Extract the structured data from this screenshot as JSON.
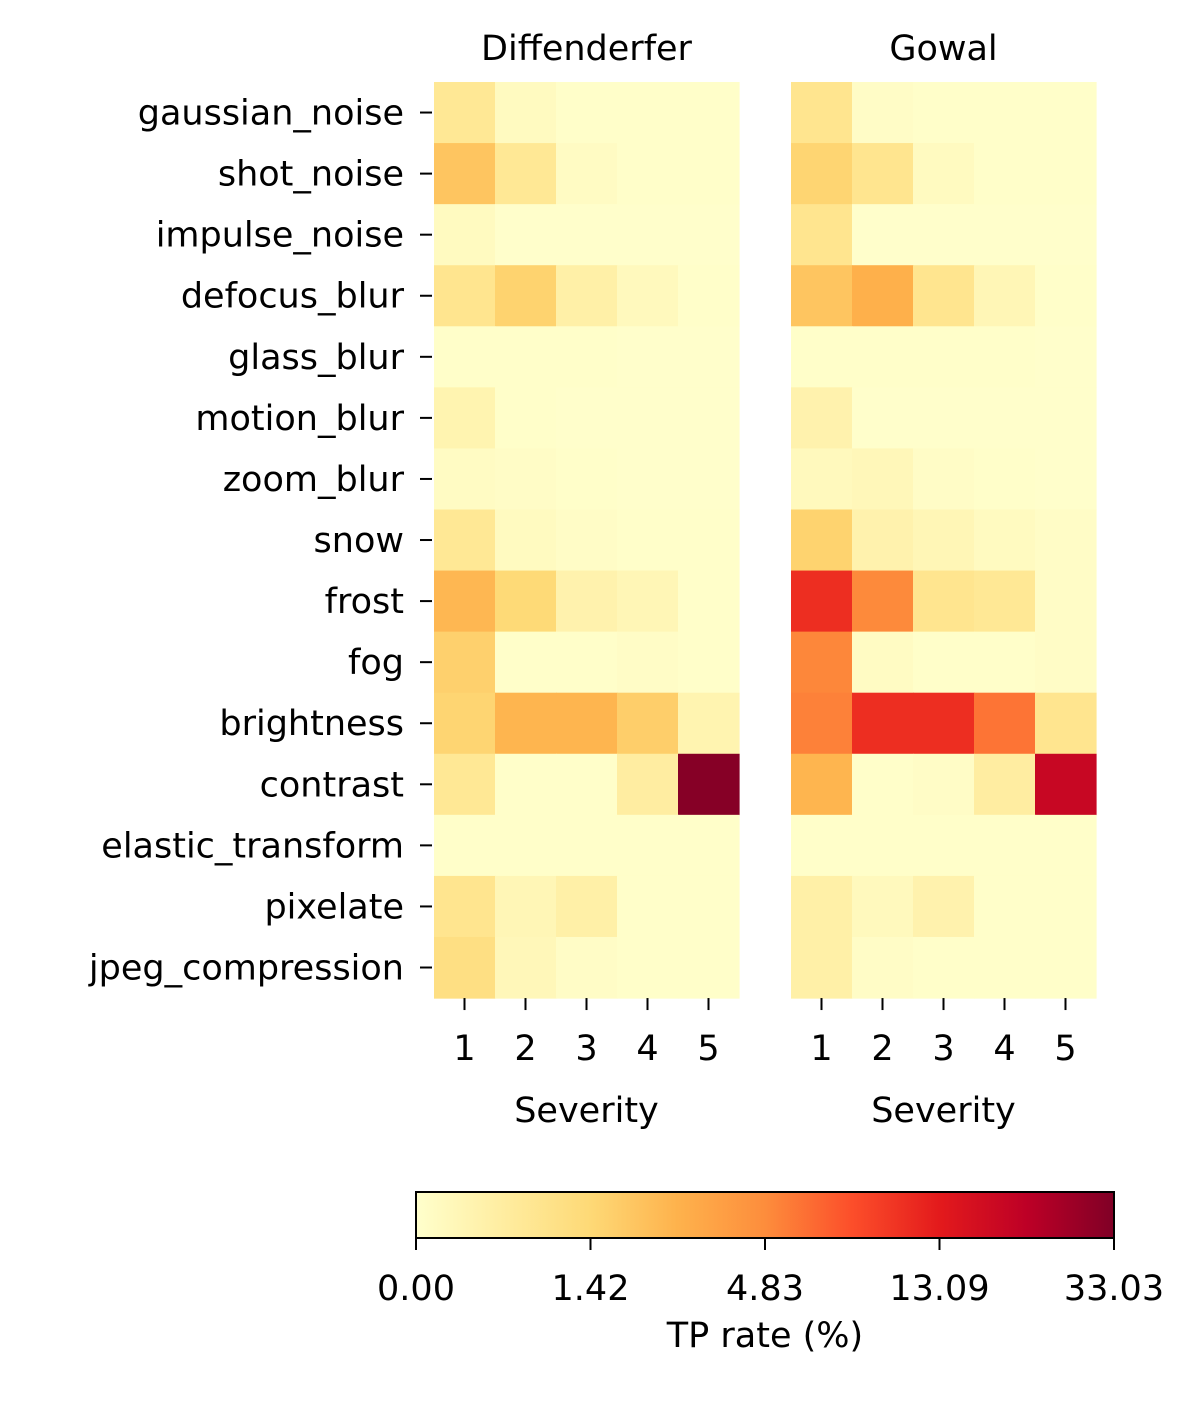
{
  "chart_data": {
    "type": "heatmap",
    "ylabels": [
      "gaussian_noise",
      "shot_noise",
      "impulse_noise",
      "defocus_blur",
      "glass_blur",
      "motion_blur",
      "zoom_blur",
      "snow",
      "frost",
      "fog",
      "brightness",
      "contrast",
      "elastic_transform",
      "pixelate",
      "jpeg_compression"
    ],
    "x": [
      1,
      2,
      3,
      4,
      5
    ],
    "xticklabels": [
      "1",
      "2",
      "3",
      "4",
      "5"
    ],
    "xlabel": "Severity",
    "panels": [
      {
        "title": "Diffenderfer",
        "values": [
          [
            0.9,
            0.2,
            0.05,
            0.05,
            0.05
          ],
          [
            2.3,
            0.9,
            0.15,
            0.05,
            0.05
          ],
          [
            0.2,
            0.02,
            0.02,
            0.02,
            0.02
          ],
          [
            1.0,
            1.7,
            0.6,
            0.25,
            0.05
          ],
          [
            0.05,
            0.05,
            0.05,
            0.02,
            0.02
          ],
          [
            0.45,
            0.05,
            0.02,
            0.02,
            0.02
          ],
          [
            0.15,
            0.1,
            0.05,
            0.02,
            0.02
          ],
          [
            0.9,
            0.2,
            0.1,
            0.05,
            0.05
          ],
          [
            2.9,
            1.4,
            0.5,
            0.35,
            0.05
          ],
          [
            1.8,
            0.05,
            0.05,
            0.1,
            0.05
          ],
          [
            1.6,
            3.0,
            3.0,
            1.9,
            0.45
          ],
          [
            0.9,
            0.05,
            0.05,
            0.7,
            32.0
          ],
          [
            0.05,
            0.05,
            0.05,
            0.05,
            0.05
          ],
          [
            1.0,
            0.35,
            0.6,
            0.05,
            0.05
          ],
          [
            1.2,
            0.3,
            0.1,
            0.05,
            0.05
          ]
        ]
      },
      {
        "title": "Gowal",
        "values": [
          [
            1.0,
            0.1,
            0.05,
            0.05,
            0.05
          ],
          [
            1.6,
            1.0,
            0.2,
            0.05,
            0.05
          ],
          [
            1.0,
            0.02,
            0.02,
            0.02,
            0.02
          ],
          [
            2.3,
            3.2,
            1.0,
            0.35,
            0.05
          ],
          [
            0.05,
            0.05,
            0.05,
            0.05,
            0.02
          ],
          [
            0.5,
            0.02,
            0.02,
            0.02,
            0.02
          ],
          [
            0.25,
            0.3,
            0.1,
            0.05,
            0.02
          ],
          [
            1.7,
            0.5,
            0.35,
            0.2,
            0.1
          ],
          [
            11.5,
            5.0,
            1.0,
            0.9,
            0.1
          ],
          [
            5.2,
            0.15,
            0.05,
            0.05,
            0.1
          ],
          [
            5.6,
            11.5,
            11.5,
            6.5,
            1.0
          ],
          [
            3.0,
            0.05,
            0.1,
            0.7,
            20.5
          ],
          [
            0.05,
            0.05,
            0.05,
            0.05,
            0.05
          ],
          [
            0.6,
            0.25,
            0.5,
            0.05,
            0.05
          ],
          [
            0.6,
            0.1,
            0.05,
            0.05,
            0.05
          ]
        ]
      }
    ],
    "colorbar": {
      "label": "TP rate (%)",
      "ticks": [
        0.0,
        1.42,
        4.83,
        13.09,
        33.03
      ],
      "ticklabels": [
        "0.00",
        "1.42",
        "4.83",
        "13.09",
        "33.03"
      ],
      "colormap": "YlOrRd",
      "colors": [
        "#ffffcc",
        "#ffeda0",
        "#fed976",
        "#feb24c",
        "#fd8d3c",
        "#fc4e2a",
        "#e31a1c",
        "#bd0026",
        "#800026"
      ]
    }
  }
}
